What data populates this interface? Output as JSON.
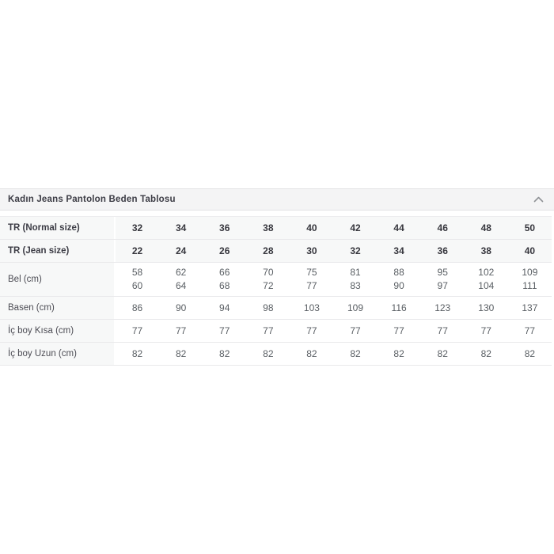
{
  "accordion": {
    "title": "Kadın Jeans Pantolon Beden Tablosu",
    "state": "expanded",
    "chevron_icon": "chevron-up-icon"
  },
  "size_table": {
    "rows": [
      {
        "label": "TR (Normal size)",
        "header": true,
        "values": [
          "32",
          "34",
          "36",
          "38",
          "40",
          "42",
          "44",
          "46",
          "48",
          "50"
        ]
      },
      {
        "label": "TR (Jean size)",
        "header": true,
        "values": [
          "22",
          "24",
          "26",
          "28",
          "30",
          "32",
          "34",
          "36",
          "38",
          "40"
        ]
      },
      {
        "label": "Bel (cm)",
        "header": false,
        "values": [
          "58\n60",
          "62\n64",
          "66\n68",
          "70\n72",
          "75\n77",
          "81\n83",
          "88\n90",
          "95\n97",
          "102\n104",
          "109\n111"
        ]
      },
      {
        "label": "Basen (cm)",
        "header": false,
        "values": [
          "86",
          "90",
          "94",
          "98",
          "103",
          "109",
          "116",
          "123",
          "130",
          "137"
        ]
      },
      {
        "label": "İç boy Kısa (cm)",
        "header": false,
        "values": [
          "77",
          "77",
          "77",
          "77",
          "77",
          "77",
          "77",
          "77",
          "77",
          "77"
        ]
      },
      {
        "label": "İç boy Uzun (cm)",
        "header": false,
        "values": [
          "82",
          "82",
          "82",
          "82",
          "82",
          "82",
          "82",
          "82",
          "82",
          "82"
        ]
      }
    ]
  },
  "colors": {
    "page_bg": "#ffffff",
    "header_bar_bg": "#f4f4f5",
    "label_column_bg": "#f7f8f8",
    "row_border": "#e9e9eb",
    "title_text": "#3c3c45",
    "label_text": "#4b4b53",
    "bold_value_text": "#36363d",
    "value_text": "#595e63",
    "chevron": "#8f9296"
  }
}
